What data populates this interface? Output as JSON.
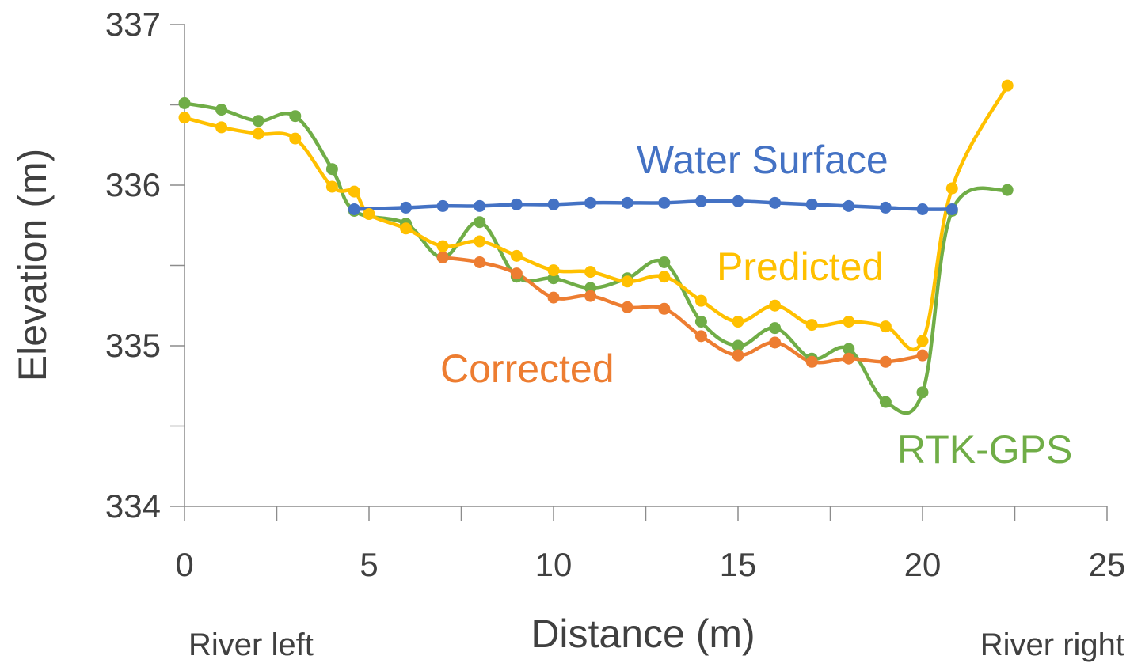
{
  "chart_data": {
    "type": "line",
    "title": "",
    "xlabel": "Distance (m)",
    "ylabel": "Elevation (m)",
    "xlim": [
      0,
      25
    ],
    "ylim": [
      334,
      337
    ],
    "x_ticks": [
      0,
      5,
      10,
      15,
      20,
      25
    ],
    "x_minor_step": 2.5,
    "y_ticks": [
      334,
      335,
      336,
      337
    ],
    "y_minor_step": 0.5,
    "grid": false,
    "legend": "inline labels",
    "annotations": {
      "left": "River left",
      "right": "River right"
    },
    "series": [
      {
        "name": "Water Surface",
        "color": "#4472C4",
        "x": [
          4.6,
          6,
          7,
          8,
          9,
          10,
          11,
          12,
          13,
          14,
          15,
          16,
          17,
          18,
          19,
          20,
          20.8
        ],
        "y": [
          335.85,
          335.86,
          335.87,
          335.87,
          335.88,
          335.88,
          335.89,
          335.89,
          335.89,
          335.9,
          335.9,
          335.89,
          335.88,
          335.87,
          335.86,
          335.85,
          335.85
        ]
      },
      {
        "name": "Predicted",
        "color": "#FFC000",
        "x": [
          0,
          1,
          2,
          3,
          4,
          4.6,
          5,
          6,
          7,
          8,
          9,
          10,
          11,
          12,
          13,
          14,
          15,
          16,
          17,
          18,
          19,
          20,
          20.8,
          22.3
        ],
        "y": [
          336.42,
          336.36,
          336.32,
          336.29,
          335.99,
          335.96,
          335.82,
          335.73,
          335.62,
          335.65,
          335.56,
          335.47,
          335.46,
          335.4,
          335.43,
          335.28,
          335.15,
          335.25,
          335.13,
          335.15,
          335.12,
          335.03,
          335.98,
          336.62
        ]
      },
      {
        "name": "Corrected",
        "color": "#ED7D31",
        "x": [
          7,
          8,
          9,
          10,
          11,
          12,
          13,
          14,
          15,
          16,
          17,
          18,
          19,
          20
        ],
        "y": [
          335.55,
          335.52,
          335.45,
          335.3,
          335.31,
          335.24,
          335.23,
          335.06,
          334.94,
          335.02,
          334.9,
          334.92,
          334.9,
          334.94
        ]
      },
      {
        "name": "RTK-GPS",
        "color": "#70AD47",
        "x": [
          0,
          1,
          2,
          3,
          4,
          4.6,
          6,
          7,
          8,
          9,
          10,
          11,
          12,
          13,
          14,
          15,
          16,
          17,
          18,
          19,
          20,
          20.8,
          22.3
        ],
        "y": [
          336.51,
          336.47,
          336.4,
          336.43,
          336.1,
          335.84,
          335.76,
          335.55,
          335.77,
          335.43,
          335.42,
          335.36,
          335.42,
          335.52,
          335.15,
          335.0,
          335.11,
          334.92,
          334.98,
          334.65,
          334.71,
          335.84,
          335.97
        ]
      }
    ]
  }
}
